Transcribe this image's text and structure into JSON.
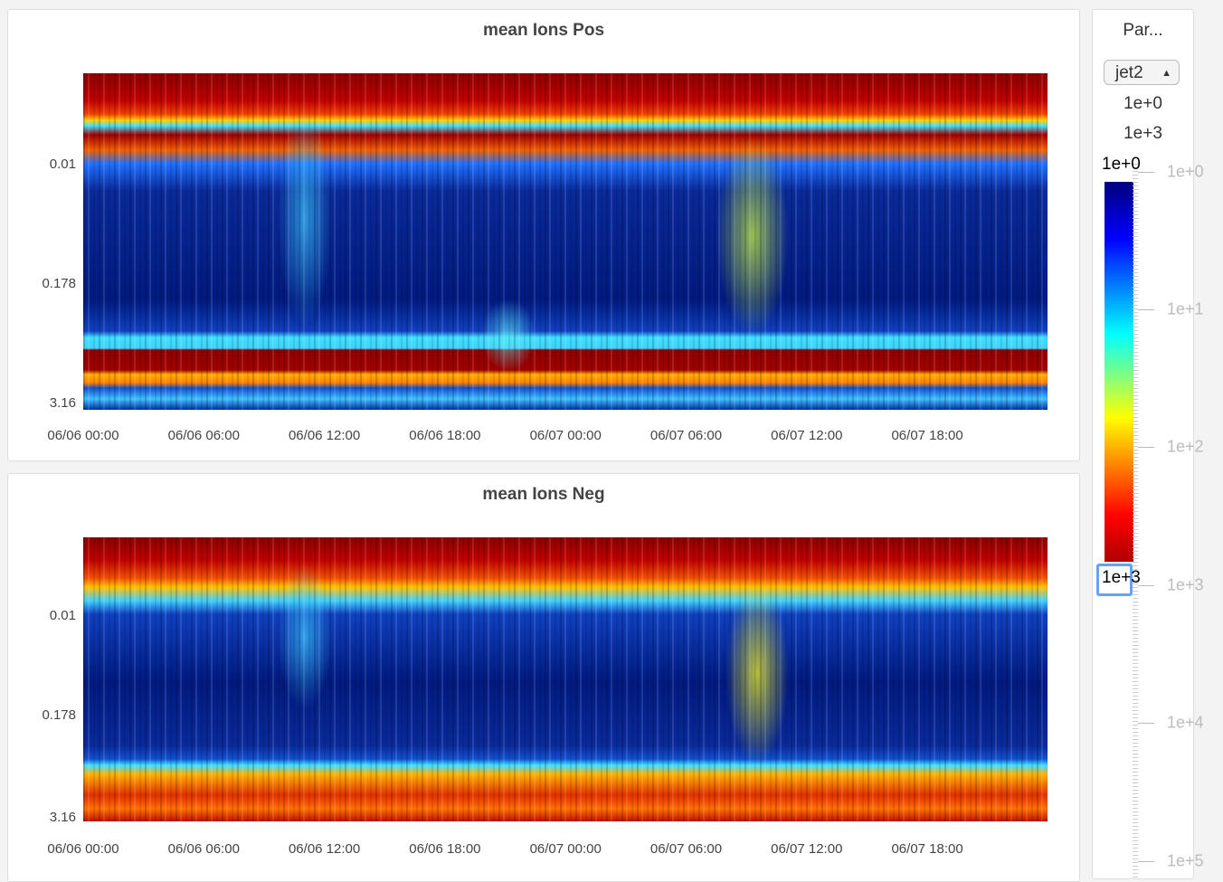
{
  "panels": [
    {
      "title": "mean Ions Pos",
      "y_ticks": [
        "0.01",
        "0.178",
        "3.16"
      ],
      "x_ticks": [
        "06/06 00:00",
        "06/06 06:00",
        "06/06 12:00",
        "06/06 18:00",
        "06/07 00:00",
        "06/07 06:00",
        "06/07 12:00",
        "06/07 18:00"
      ]
    },
    {
      "title": "mean Ions Neg",
      "y_ticks": [
        "0.01",
        "0.178",
        "3.16"
      ],
      "x_ticks": [
        "06/06 00:00",
        "06/06 06:00",
        "06/06 12:00",
        "06/06 18:00",
        "06/07 00:00",
        "06/07 06:00",
        "06/07 12:00",
        "06/07 18:00"
      ]
    }
  ],
  "sidebar": {
    "title": "Par...",
    "colormap": "jet2",
    "range_min": "1e+0",
    "range_max": "1e+3",
    "input_min": "1e+0",
    "input_max": "1e+3",
    "scale_ticks": [
      "1e+0",
      "1e+1",
      "1e+2",
      "1e+3",
      "1e+4",
      "1e+5"
    ]
  }
}
